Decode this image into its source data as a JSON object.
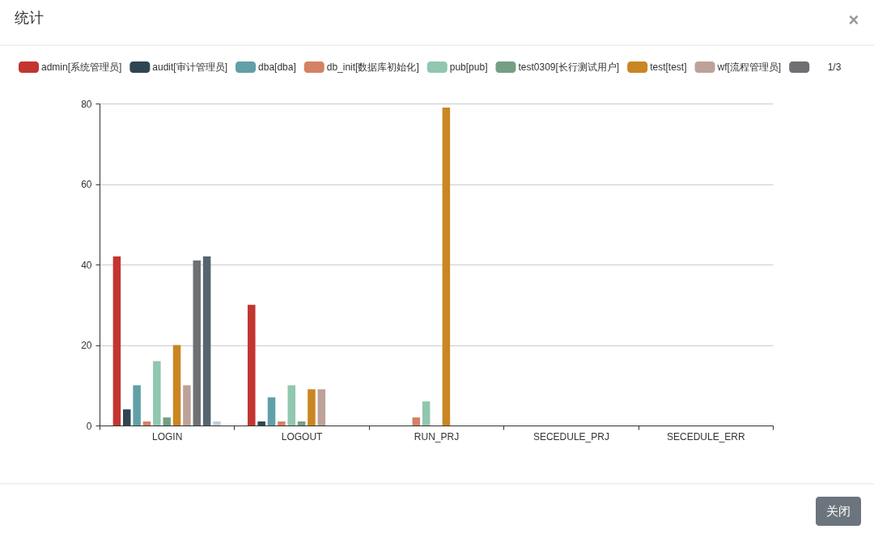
{
  "chart_data": {
    "type": "bar",
    "title": "统计",
    "categories": [
      "LOGIN",
      "LOGOUT",
      "RUN_PRJ",
      "SECEDULE_PRJ",
      "SECEDULE_ERR"
    ],
    "series": [
      {
        "name": "admin[系统管理员]",
        "color": "#c23531",
        "values": [
          42,
          30,
          0,
          0,
          0
        ]
      },
      {
        "name": "audit[审计管理员]",
        "color": "#2f4554",
        "values": [
          4,
          1,
          0,
          0,
          0
        ]
      },
      {
        "name": "dba[dba]",
        "color": "#61a0a8",
        "values": [
          10,
          7,
          0,
          0,
          0
        ]
      },
      {
        "name": "db_init[数据库初始化]",
        "color": "#d48265",
        "values": [
          1,
          1,
          2,
          0,
          0
        ]
      },
      {
        "name": "pub[pub]",
        "color": "#91c7ae",
        "values": [
          16,
          10,
          6,
          0,
          0
        ]
      },
      {
        "name": "test0309[长行测试用户]",
        "color": "#749f83",
        "values": [
          2,
          1,
          0,
          0,
          0
        ]
      },
      {
        "name": "test[test]",
        "color": "#ca8622",
        "values": [
          20,
          9,
          79,
          0,
          0
        ]
      },
      {
        "name": "wf[流程管理员]",
        "color": "#bda29a",
        "values": [
          10,
          9,
          0,
          0,
          0
        ]
      },
      {
        "color": "#6e7074",
        "values": [
          41,
          0,
          0,
          0,
          0
        ]
      },
      {
        "color": "#546570",
        "values": [
          42,
          0,
          0,
          0,
          0
        ]
      },
      {
        "color": "#c4ccd3",
        "values": [
          1,
          0,
          0,
          0,
          0
        ]
      }
    ],
    "ylim": [
      0,
      80
    ],
    "yticks": [
      0,
      20,
      40,
      60,
      80
    ],
    "grid": "y",
    "legend": "top",
    "annotations": [
      "×",
      "1/3",
      "关闭"
    ]
  }
}
